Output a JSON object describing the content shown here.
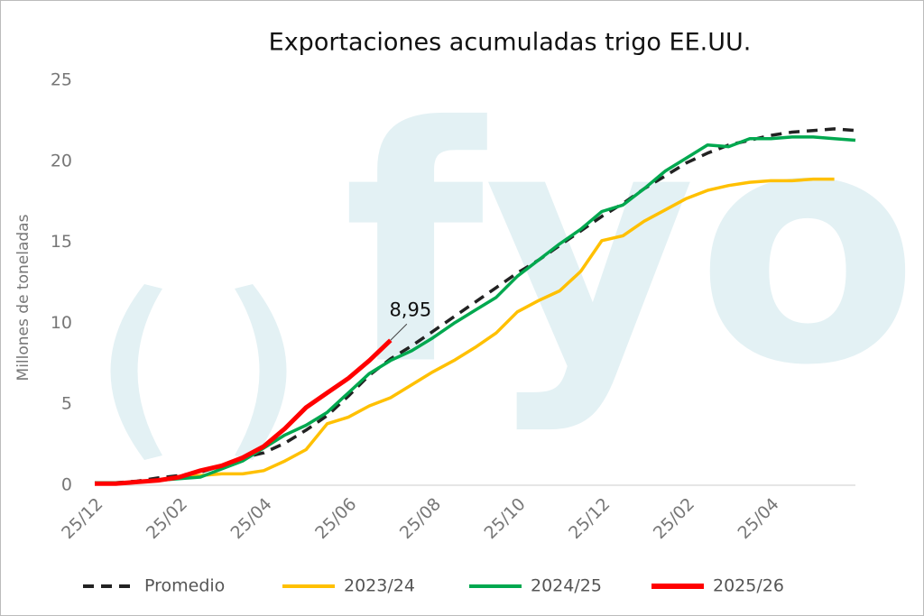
{
  "chart_data": {
    "type": "line",
    "title": "Exportaciones acumuladas trigo EE.UU.",
    "y_label": "Millones de toneladas",
    "watermark": "fyo",
    "categories": [
      "25/12",
      null,
      null,
      null,
      "25/02",
      null,
      null,
      null,
      "25/04",
      null,
      null,
      null,
      "25/06",
      null,
      null,
      null,
      "25/08",
      null,
      null,
      null,
      "25/10",
      null,
      null,
      null,
      "25/12",
      null,
      null,
      null,
      "25/02",
      null,
      null,
      null,
      "25/04",
      null,
      null,
      null,
      null
    ],
    "ylim": [
      0,
      25
    ],
    "yticks": [
      0,
      5,
      10,
      15,
      20,
      25
    ],
    "grid": false,
    "legend": "bottom",
    "series": [
      {
        "name": "Promedio",
        "color": "#222222",
        "dash": true,
        "values": [
          0.1,
          0.15,
          0.25,
          0.45,
          0.6,
          0.8,
          1.2,
          1.7,
          2.0,
          2.6,
          3.4,
          4.3,
          5.5,
          6.8,
          7.8,
          8.6,
          9.5,
          10.4,
          11.3,
          12.2,
          13.1,
          13.9,
          14.8,
          15.7,
          16.6,
          17.4,
          18.3,
          19.1,
          19.9,
          20.5,
          21.0,
          21.3,
          21.6,
          21.8,
          21.9,
          22.0,
          21.9
        ]
      },
      {
        "name": "2023/24",
        "color": "#ffc000",
        "values": [
          0.1,
          0.1,
          0.2,
          0.3,
          0.5,
          0.6,
          0.7,
          0.7,
          0.9,
          1.5,
          2.2,
          3.8,
          4.2,
          4.9,
          5.4,
          6.2,
          7.0,
          7.7,
          8.5,
          9.4,
          10.7,
          11.4,
          12.0,
          13.2,
          15.1,
          15.4,
          16.3,
          17.0,
          17.7,
          18.2,
          18.5,
          18.7,
          18.8,
          18.8,
          18.9,
          18.9,
          null
        ]
      },
      {
        "name": "2024/25",
        "color": "#00a84f",
        "values": [
          0.15,
          0.15,
          0.2,
          0.3,
          0.4,
          0.5,
          1.0,
          1.5,
          2.3,
          3.1,
          3.7,
          4.5,
          5.7,
          6.9,
          7.7,
          8.3,
          9.1,
          10.0,
          10.8,
          11.6,
          12.9,
          13.9,
          14.9,
          15.8,
          16.9,
          17.3,
          18.3,
          19.4,
          20.2,
          21.0,
          20.9,
          21.4,
          21.4,
          21.5,
          21.5,
          21.4,
          21.3
        ]
      },
      {
        "name": "2025/26",
        "color": "#ff0000",
        "bold": true,
        "values": [
          0.1,
          0.1,
          0.2,
          0.3,
          0.5,
          0.9,
          1.2,
          1.7,
          2.4,
          3.5,
          4.8,
          5.7,
          6.6,
          7.7,
          8.95,
          null,
          null,
          null,
          null,
          null,
          null,
          null,
          null,
          null,
          null,
          null,
          null,
          null,
          null,
          null,
          null,
          null,
          null,
          null,
          null,
          null,
          null
        ],
        "value_labels": [
          null,
          null,
          null,
          null,
          null,
          null,
          null,
          null,
          null,
          null,
          null,
          null,
          null,
          null,
          "8,95",
          null,
          null,
          null,
          null,
          null,
          null,
          null,
          null,
          null,
          null,
          null,
          null,
          null,
          null,
          null,
          null,
          null,
          null,
          null,
          null,
          null,
          null
        ]
      }
    ]
  }
}
